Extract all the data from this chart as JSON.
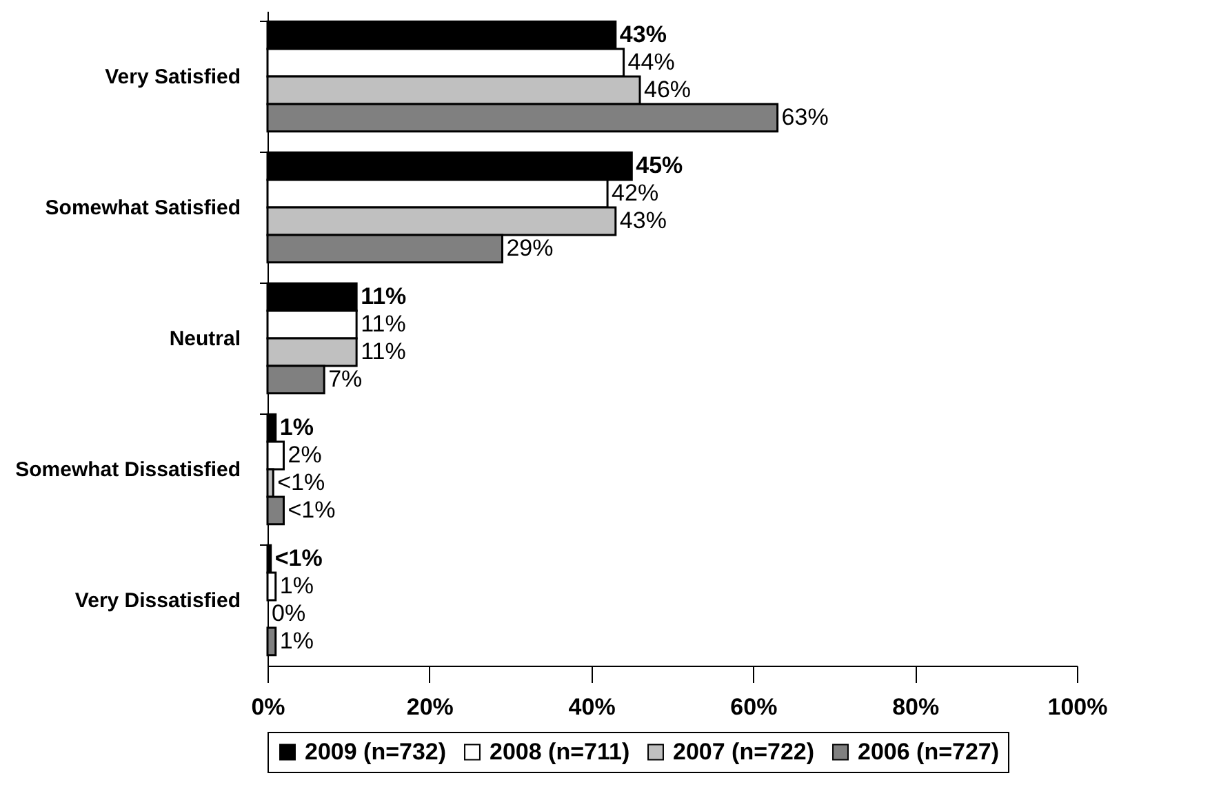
{
  "chart_data": {
    "type": "bar",
    "orientation": "horizontal",
    "categories": [
      "Very Satisfied",
      "Somewhat Satisfied",
      "Neutral",
      "Somewhat Dissatisfied",
      "Very Dissatisfied"
    ],
    "series": [
      {
        "name": "2009 (n=732)",
        "color": "#000000",
        "values": [
          43,
          45,
          11,
          1,
          0.4
        ],
        "value_labels": [
          "43%",
          "45%",
          "11%",
          "1%",
          "<1%"
        ]
      },
      {
        "name": "2008 (n=711)",
        "color": "#ffffff",
        "values": [
          44,
          42,
          11,
          2,
          1
        ],
        "value_labels": [
          "44%",
          "42%",
          "11%",
          "2%",
          "1%"
        ]
      },
      {
        "name": "2007 (n=722)",
        "color": "#c0c0c0",
        "values": [
          46,
          43,
          11,
          0.7,
          0
        ],
        "value_labels": [
          "46%",
          "43%",
          "11%",
          "<1%",
          "0%"
        ]
      },
      {
        "name": "2006 (n=727)",
        "color": "#808080",
        "values": [
          63,
          29,
          7,
          2,
          1
        ],
        "value_labels": [
          "63%",
          "29%",
          "7%",
          "<1%",
          "1%"
        ]
      }
    ],
    "xlim": [
      0,
      100
    ],
    "xticks": [
      {
        "value": 0,
        "label": "0%"
      },
      {
        "value": 20,
        "label": "20%"
      },
      {
        "value": 40,
        "label": "40%"
      },
      {
        "value": 60,
        "label": "60%"
      },
      {
        "value": 80,
        "label": "80%"
      },
      {
        "value": 100,
        "label": "100%"
      }
    ],
    "grid": false,
    "legend": "bottom"
  }
}
